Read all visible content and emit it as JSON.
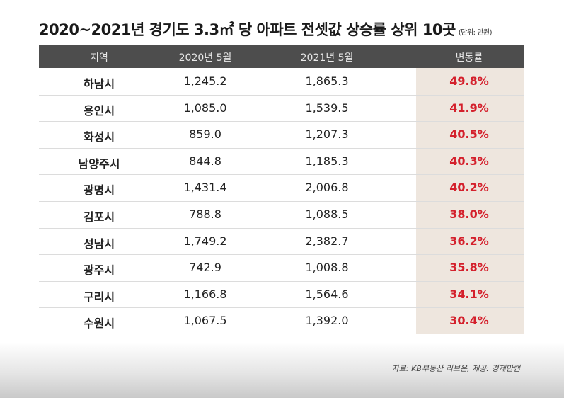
{
  "header": {
    "title": "2020~2021년 경기도 3.3㎡ 당 아파트 전셋값 상승률 상위 10곳",
    "unit": "(단위: 만원)"
  },
  "table": {
    "columns": [
      "지역",
      "2020년 5월",
      "2021년 5월",
      "변동률"
    ],
    "rows": [
      [
        "하남시",
        "1,245.2",
        "1,865.3",
        "49.8%"
      ],
      [
        "용인시",
        "1,085.0",
        "1,539.5",
        "41.9%"
      ],
      [
        "화성시",
        "859.0",
        "1,207.3",
        "40.5%"
      ],
      [
        "남양주시",
        "844.8",
        "1,185.3",
        "40.3%"
      ],
      [
        "광명시",
        "1,431.4",
        "2,006.8",
        "40.2%"
      ],
      [
        "김포시",
        "788.8",
        "1,088.5",
        "38.0%"
      ],
      [
        "성남시",
        "1,749.2",
        "2,382.7",
        "36.2%"
      ],
      [
        "광주시",
        "742.9",
        "1,008.8",
        "35.8%"
      ],
      [
        "구리시",
        "1,166.8",
        "1,564.6",
        "34.1%"
      ],
      [
        "수원시",
        "1,067.5",
        "1,392.0",
        "30.4%"
      ]
    ]
  },
  "footer": {
    "source": "자료: KB부동산 리브온, 제공: 경제만랩"
  }
}
